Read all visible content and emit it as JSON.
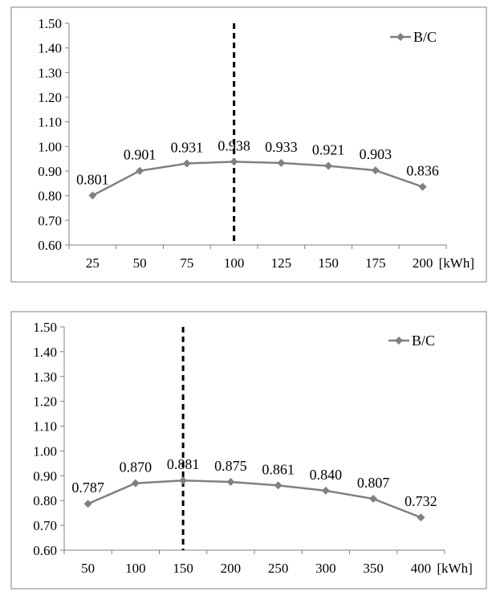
{
  "chart_data": [
    {
      "type": "line",
      "x_categories": [
        "25",
        "50",
        "75",
        "100",
        "125",
        "150",
        "175",
        "200"
      ],
      "x_unit_label": "[kWh]",
      "y_ticks": [
        "0.60",
        "0.70",
        "0.80",
        "0.90",
        "1.00",
        "1.10",
        "1.20",
        "1.30",
        "1.40",
        "1.50"
      ],
      "ylim": [
        0.6,
        1.5
      ],
      "grid": false,
      "legend_position": "top-right",
      "series": [
        {
          "name": "B/C",
          "values": [
            0.801,
            0.901,
            0.931,
            0.938,
            0.933,
            0.921,
            0.903,
            0.836
          ],
          "data_labels": [
            "0.801",
            "0.901",
            "0.931",
            "0.938",
            "0.933",
            "0.921",
            "0.903",
            "0.836"
          ],
          "color": "#808080"
        }
      ],
      "vertical_marker_at": "100"
    },
    {
      "type": "line",
      "x_categories": [
        "50",
        "100",
        "150",
        "200",
        "250",
        "300",
        "350",
        "400"
      ],
      "x_unit_label": "[kWh]",
      "y_ticks": [
        "0.60",
        "0.70",
        "0.80",
        "0.90",
        "1.00",
        "1.10",
        "1.20",
        "1.30",
        "1.40",
        "1.50"
      ],
      "ylim": [
        0.6,
        1.5
      ],
      "grid": false,
      "legend_position": "top-right",
      "series": [
        {
          "name": "B/C",
          "values": [
            0.787,
            0.87,
            0.881,
            0.875,
            0.861,
            0.84,
            0.807,
            0.732
          ],
          "data_labels": [
            "0.787",
            "0.870",
            "0.881",
            "0.875",
            "0.861",
            "0.840",
            "0.807",
            "0.732"
          ],
          "color": "#808080"
        }
      ],
      "vertical_marker_at": "150"
    }
  ]
}
